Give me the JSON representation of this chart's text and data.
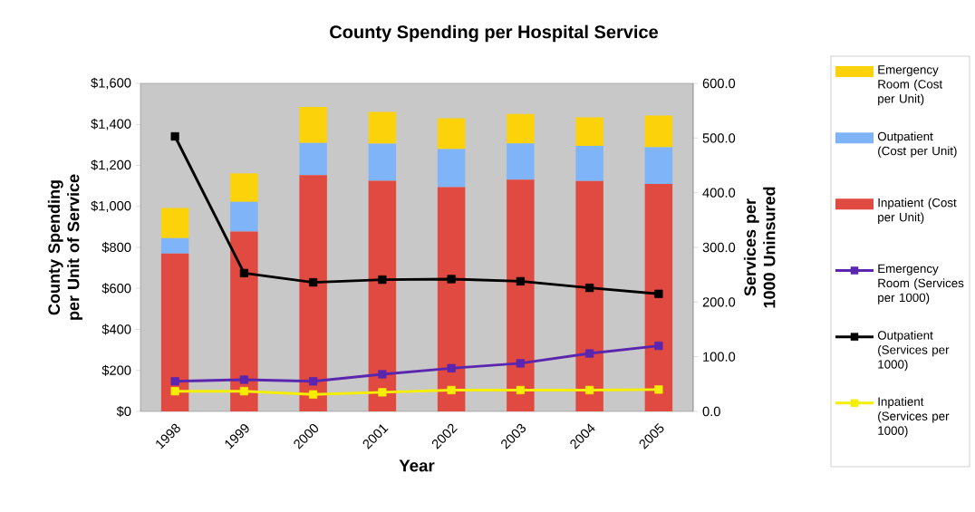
{
  "chart_data": {
    "type": "bar",
    "title": "County Spending per Hospital Service",
    "xlabel": "Year",
    "ylabel": "County Spending per Unit of Service",
    "y2label": "Services per 1000 Uninsured",
    "categories": [
      "1998",
      "1999",
      "2000",
      "2001",
      "2002",
      "2003",
      "2004",
      "2005"
    ],
    "stacked": true,
    "legend": "right",
    "marker": "square",
    "line_style": "solid",
    "ylim": [
      0,
      1600
    ],
    "yticks": [
      {
        "value": 0,
        "label": "$0"
      },
      {
        "value": 200,
        "label": "$200"
      },
      {
        "value": 400,
        "label": "$400"
      },
      {
        "value": 600,
        "label": "$600"
      },
      {
        "value": 800,
        "label": "$800"
      },
      {
        "value": 1000,
        "label": "$1,000"
      },
      {
        "value": 1200,
        "label": "$1,200"
      },
      {
        "value": 1400,
        "label": "$1,400"
      },
      {
        "value": 1600,
        "label": "$1,600"
      }
    ],
    "y2lim": [
      0,
      600
    ],
    "y2ticks": [
      {
        "value": 0,
        "label": "0.0"
      },
      {
        "value": 100,
        "label": "100.0"
      },
      {
        "value": 200,
        "label": "200.0"
      },
      {
        "value": 300,
        "label": "300.0"
      },
      {
        "value": 400,
        "label": "400.0"
      },
      {
        "value": 500,
        "label": "500.0"
      },
      {
        "value": 600,
        "label": "600.0"
      }
    ],
    "series": [
      {
        "name": "Inpatient (Cost per Unit)",
        "color": "#e04a40",
        "values": [
          770,
          877,
          1152,
          1125,
          1094,
          1130,
          1124,
          1109
        ]
      },
      {
        "name": "Outpatient (Cost per Unit)",
        "color": "#80b4f8",
        "values": [
          75,
          145,
          157,
          181,
          185,
          177,
          171,
          179
        ]
      },
      {
        "name": "Emergency Room (Cost per Unit)",
        "color": "#fcd20a",
        "values": [
          147,
          139,
          176,
          155,
          151,
          144,
          139,
          155
        ]
      },
      {
        "name": "Emergency Room (Services per 1000)",
        "type": "line",
        "axis": "y2",
        "color": "#5a26b0",
        "values": [
          55,
          58,
          55,
          68,
          79,
          88,
          106,
          120
        ]
      },
      {
        "name": "Outpatient (Services per 1000)",
        "type": "line",
        "axis": "y2",
        "color": "#000000",
        "values": [
          503,
          253,
          236,
          241,
          242,
          238,
          226,
          215
        ]
      },
      {
        "name": "Inpatient (Services per 1000)",
        "type": "line",
        "axis": "y2",
        "color": "#f5ee00",
        "values": [
          37,
          37,
          31,
          35,
          39,
          39,
          39,
          40
        ]
      }
    ]
  }
}
